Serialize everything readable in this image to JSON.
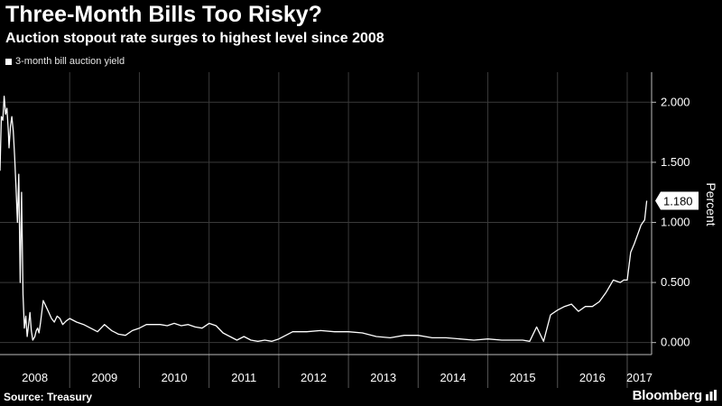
{
  "header": {
    "title": "Three-Month Bills Too Risky?",
    "subtitle": "Auction stopout rate surges to highest level since 2008"
  },
  "footer": {
    "source": "Source: Treasury",
    "brand": "Bloomberg"
  },
  "colors": {
    "background": "#000000",
    "line": "#ffffff",
    "grid": "#3a3a3a",
    "text": "#ffffff"
  },
  "chart_data": {
    "type": "line",
    "title": "Three-Month Bills Too Risky?",
    "subtitle": "Auction stopout rate surges to highest level since 2008",
    "ylabel": "Percent",
    "xlabel": "",
    "ylim": [
      -0.1,
      2.25
    ],
    "xlim": [
      2008.0,
      2017.35
    ],
    "yticks": [
      0.0,
      0.5,
      1.0,
      1.5,
      2.0
    ],
    "ytick_labels": [
      "0.000",
      "0.500",
      "1.000",
      "1.500",
      "2.000"
    ],
    "xticks": [
      2008,
      2009,
      2010,
      2011,
      2012,
      2013,
      2014,
      2015,
      2016,
      2017
    ],
    "xtick_labels": [
      "2008",
      "2009",
      "2010",
      "2011",
      "2012",
      "2013",
      "2014",
      "2015",
      "2016",
      "2017"
    ],
    "grid": true,
    "legend_position": "top-left",
    "last_value_label": "1.180",
    "series": [
      {
        "name": "3-month bill auction yield",
        "x": [
          2008.0,
          2008.02,
          2008.04,
          2008.06,
          2008.08,
          2008.1,
          2008.12,
          2008.13,
          2008.15,
          2008.17,
          2008.19,
          2008.21,
          2008.23,
          2008.25,
          2008.27,
          2008.29,
          2008.31,
          2008.33,
          2008.35,
          2008.37,
          2008.39,
          2008.41,
          2008.43,
          2008.45,
          2008.47,
          2008.5,
          2008.52,
          2008.54,
          2008.56,
          2008.58,
          2008.62,
          2008.66,
          2008.7,
          2008.74,
          2008.78,
          2008.82,
          2008.86,
          2008.9,
          2008.95,
          2009.0,
          2009.1,
          2009.2,
          2009.3,
          2009.4,
          2009.5,
          2009.6,
          2009.7,
          2009.8,
          2009.9,
          2010.0,
          2010.1,
          2010.2,
          2010.3,
          2010.4,
          2010.5,
          2010.6,
          2010.7,
          2010.8,
          2010.9,
          2011.0,
          2011.1,
          2011.2,
          2011.3,
          2011.4,
          2011.5,
          2011.6,
          2011.7,
          2011.8,
          2011.9,
          2012.0,
          2012.2,
          2012.4,
          2012.6,
          2012.8,
          2013.0,
          2013.2,
          2013.4,
          2013.6,
          2013.8,
          2014.0,
          2014.2,
          2014.4,
          2014.6,
          2014.8,
          2015.0,
          2015.2,
          2015.4,
          2015.5,
          2015.6,
          2015.7,
          2015.8,
          2015.9,
          2016.0,
          2016.1,
          2016.2,
          2016.3,
          2016.4,
          2016.5,
          2016.6,
          2016.7,
          2016.8,
          2016.9,
          2016.95,
          2017.0,
          2017.05,
          2017.1,
          2017.15,
          2017.2,
          2017.25,
          2017.28
        ],
        "values": [
          1.43,
          1.88,
          1.85,
          2.05,
          1.9,
          1.95,
          1.75,
          1.62,
          1.8,
          1.88,
          1.76,
          1.55,
          1.28,
          1.0,
          1.4,
          0.5,
          1.25,
          0.4,
          0.12,
          0.22,
          0.05,
          0.15,
          0.25,
          0.1,
          0.02,
          0.05,
          0.1,
          0.12,
          0.08,
          0.16,
          0.35,
          0.3,
          0.25,
          0.2,
          0.17,
          0.22,
          0.2,
          0.15,
          0.18,
          0.2,
          0.17,
          0.15,
          0.12,
          0.09,
          0.15,
          0.1,
          0.07,
          0.06,
          0.1,
          0.12,
          0.15,
          0.15,
          0.15,
          0.14,
          0.16,
          0.14,
          0.15,
          0.13,
          0.12,
          0.16,
          0.14,
          0.08,
          0.05,
          0.02,
          0.05,
          0.02,
          0.01,
          0.02,
          0.01,
          0.03,
          0.09,
          0.09,
          0.1,
          0.09,
          0.09,
          0.08,
          0.05,
          0.04,
          0.06,
          0.06,
          0.04,
          0.04,
          0.03,
          0.02,
          0.03,
          0.02,
          0.02,
          0.02,
          0.01,
          0.13,
          0.01,
          0.23,
          0.27,
          0.3,
          0.32,
          0.26,
          0.3,
          0.3,
          0.34,
          0.42,
          0.52,
          0.5,
          0.52,
          0.52,
          0.75,
          0.82,
          0.9,
          0.98,
          1.02,
          1.18
        ]
      }
    ]
  }
}
